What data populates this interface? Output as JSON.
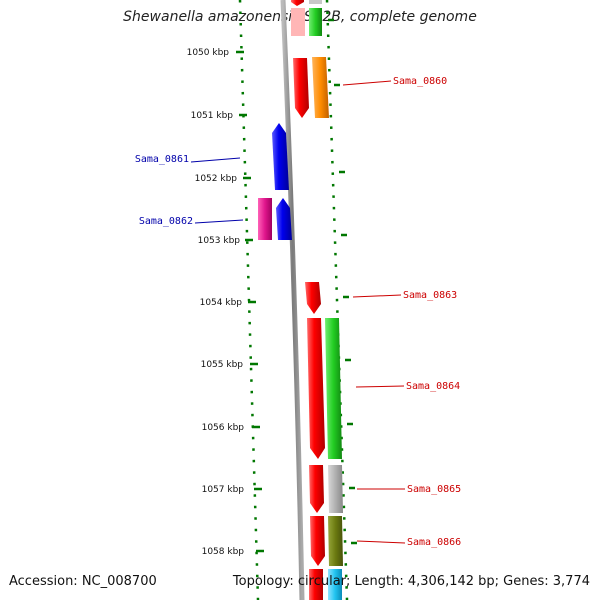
{
  "title": "Shewanella amazonensis SB2B, complete genome",
  "footer": {
    "accession": "Accession: NC_008700",
    "summary": "Topology: circular; Length: 4,306,142 bp; Genes: 3,774"
  },
  "ticks": [
    "1050 kbp",
    "1051 kbp",
    "1052 kbp",
    "1053 kbp",
    "1054 kbp",
    "1055 kbp",
    "1056 kbp",
    "1057 kbp",
    "1058 kbp"
  ],
  "gene_labels": [
    {
      "text": "Sama_0860",
      "side": "right",
      "color": "#cc0000"
    },
    {
      "text": "Sama_0861",
      "side": "left",
      "color": "#0000aa"
    },
    {
      "text": "Sama_0862",
      "side": "left",
      "color": "#0000aa"
    },
    {
      "text": "Sama_0863",
      "side": "right",
      "color": "#cc0000"
    },
    {
      "text": "Sama_0864",
      "side": "right",
      "color": "#cc0000"
    },
    {
      "text": "Sama_0865",
      "side": "right",
      "color": "#cc0000"
    },
    {
      "text": "Sama_0866",
      "side": "right",
      "color": "#cc0000"
    }
  ],
  "colors": {
    "forward_strand": "#ff0000",
    "reverse_strand": "#0000ee",
    "cog_orange": "#ff8c00",
    "cog_magenta": "#e0158c",
    "cog_green": "#22cc22",
    "cog_gray": "#b0b0b0",
    "cog_olive": "#6b7a10",
    "cog_cyan": "#22c4f0",
    "cog_pink": "#ffb6b6",
    "backbone": "#888888",
    "tick_marks": "#007700"
  }
}
